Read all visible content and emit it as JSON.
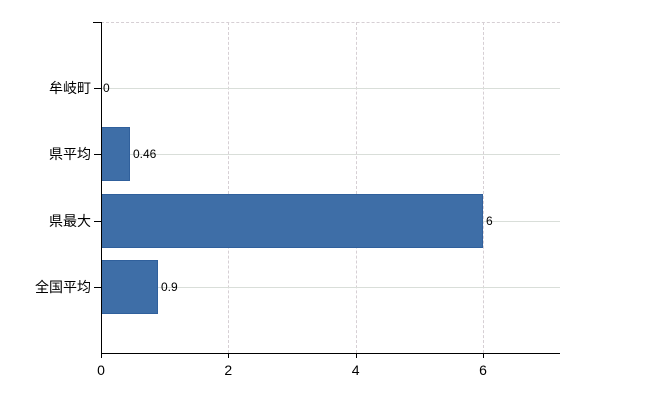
{
  "chart_data": {
    "type": "bar",
    "orientation": "horizontal",
    "categories": [
      "牟岐町",
      "県平均",
      "県最大",
      "全国平均"
    ],
    "values": [
      0,
      0.46,
      6,
      0.9
    ],
    "value_labels": [
      "0",
      "0.46",
      "6",
      "0.9"
    ],
    "x_tick_values": [
      0,
      2,
      4,
      6
    ],
    "x_tick_labels": [
      "0",
      "2",
      "4",
      "6"
    ],
    "xlim": [
      0,
      7.2
    ],
    "title": "",
    "xlabel": "",
    "ylabel": "",
    "legend": "none",
    "grid": "on",
    "gridline_horizontal_style": "solid",
    "gridline_vertical_style": "dashed"
  },
  "colors": {
    "background": "#ffffff",
    "bar_fill": "#3e6ea7",
    "bar_border": "#30609c",
    "axis": "#000000",
    "gridline_horizontal": "#d9ded9",
    "gridline_vertical": "#d6cfd4",
    "text": "#000000"
  }
}
